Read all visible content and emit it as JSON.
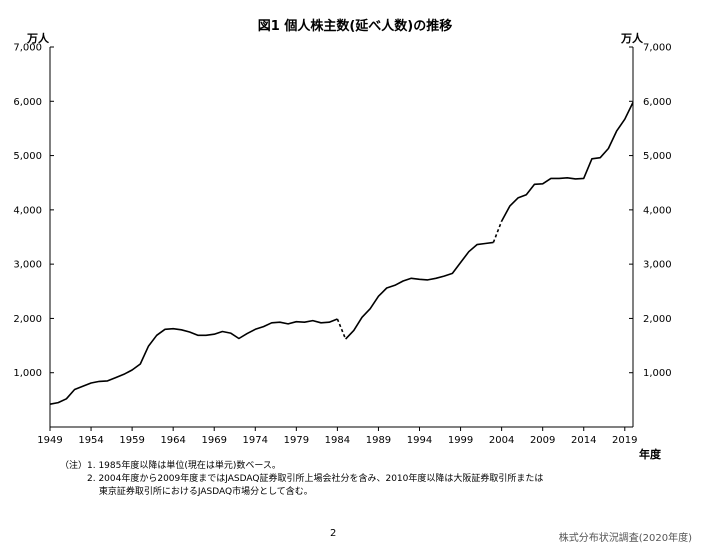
{
  "chart_data": {
    "type": "line",
    "title": "図1 個人株主数(延べ人数)の推移",
    "ylabel_left": "万人",
    "ylabel_right": "万人",
    "xlabel": "年度",
    "ylim": [
      0,
      7000
    ],
    "yticks": [
      1000,
      2000,
      3000,
      4000,
      5000,
      6000,
      7000
    ],
    "ytick_labels": [
      "1,000",
      "2,000",
      "3,000",
      "4,000",
      "5,000",
      "6,000",
      "7,000"
    ],
    "xlim": [
      1949,
      2020
    ],
    "xticks": [
      1949,
      1954,
      1959,
      1964,
      1969,
      1974,
      1979,
      1984,
      1989,
      1994,
      1999,
      2004,
      2009,
      2014,
      2019
    ],
    "xtick_labels": [
      "1949",
      "1954",
      "1959",
      "1964",
      "1969",
      "1974",
      "1979",
      "1984",
      "1989",
      "1994",
      "1999",
      "2004",
      "2009",
      "2014",
      "2019"
    ],
    "grid": false,
    "series": [
      {
        "segments": [
          {
            "style": "solid",
            "x": [
              1949,
              1950,
              1951,
              1952,
              1953,
              1954,
              1955,
              1956,
              1957,
              1958,
              1959,
              1960,
              1961,
              1962,
              1963,
              1964,
              1965,
              1966,
              1967,
              1968,
              1969,
              1970,
              1971,
              1972,
              1973,
              1974,
              1975,
              1976,
              1977,
              1978,
              1979,
              1980,
              1981,
              1982,
              1983,
              1984
            ],
            "y": [
              420,
              450,
              520,
              690,
              750,
              810,
              840,
              850,
              910,
              970,
              1050,
              1160,
              1490,
              1690,
              1800,
              1810,
              1790,
              1750,
              1690,
              1690,
              1710,
              1760,
              1730,
              1630,
              1720,
              1800,
              1850,
              1920,
              1930,
              1900,
              1940,
              1930,
              1960,
              1920,
              1930,
              1990
            ]
          },
          {
            "style": "dashed",
            "x": [
              1984,
              1985
            ],
            "y": [
              1990,
              1620
            ]
          },
          {
            "style": "solid",
            "x": [
              1985,
              1986,
              1987,
              1988,
              1989,
              1990,
              1991,
              1992,
              1993,
              1994,
              1995,
              1996,
              1997,
              1998,
              1999,
              2000,
              2001,
              2002,
              2003
            ],
            "y": [
              1620,
              1780,
              2020,
              2180,
              2410,
              2560,
              2610,
              2690,
              2740,
              2720,
              2710,
              2740,
              2780,
              2830,
              3030,
              3230,
              3360,
              3380,
              3400
            ]
          },
          {
            "style": "dashed",
            "x": [
              2003,
              2004
            ],
            "y": [
              3400,
              3790
            ]
          },
          {
            "style": "solid",
            "x": [
              2004,
              2005,
              2006,
              2007,
              2008,
              2009,
              2010,
              2011,
              2012,
              2013,
              2014,
              2015,
              2016,
              2017,
              2018,
              2019,
              2020
            ],
            "y": [
              3790,
              4070,
              4220,
              4280,
              4470,
              4480,
              4580,
              4580,
              4590,
              4570,
              4580,
              4940,
              4960,
              5130,
              5450,
              5670,
              5980
            ]
          }
        ]
      }
    ]
  },
  "notes": [
    "（注）1. 1985年度以降は単位(現在は単元)数ベース。",
    "　　　2. 2004年度から2009年度まではJASDAQ証券取引所上場会社分を含み、2010年度以降は大阪証券取引所または",
    "　　　　 東京証券取引所におけるJASDAQ市場分として含む。"
  ],
  "page_number": "2",
  "source": "株式分布状況調査(2020年度)"
}
